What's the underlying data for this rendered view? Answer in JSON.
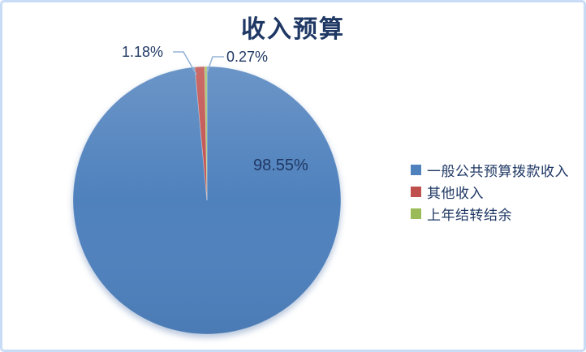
{
  "chart_data": {
    "type": "pie",
    "title": "收入预算",
    "series_labels": [
      "一般公共预算拨款收入",
      "其他收入",
      "上年结转结余"
    ],
    "values": [
      98.55,
      1.18,
      0.27
    ],
    "data_labels": [
      "98.55%",
      "1.18%",
      "0.27%"
    ],
    "colors": [
      "#4F81BD",
      "#C0504D",
      "#9BBB59"
    ],
    "unit": "%",
    "legend_position": "right",
    "start_angle_deg": 0,
    "direction": "clockwise",
    "grid": false
  },
  "style": {
    "title_color": "#1F3864",
    "label_color": "#1F3864",
    "legend_text_color": "#1F3864",
    "leader_line_color": "#95B3D7",
    "frame_border_color": "#C9DCF5",
    "background": "#FFFFFF"
  }
}
